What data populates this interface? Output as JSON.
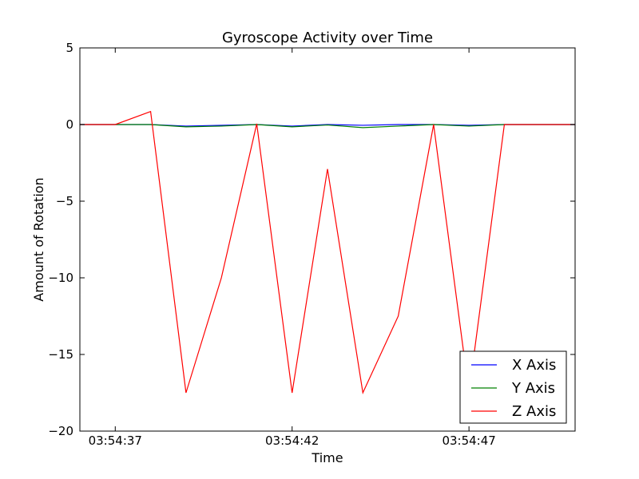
{
  "chart_data": {
    "type": "line",
    "title": "Gyroscope Activity over Time",
    "xlabel": "Time",
    "ylabel": "Amount of Rotation",
    "ylim": [
      -20,
      5
    ],
    "yticks": [
      5,
      0,
      -5,
      -10,
      -15,
      -20
    ],
    "xlim": [
      "03:54:36",
      "03:54:50"
    ],
    "xticks": [
      "03:54:37",
      "03:54:42",
      "03:54:47"
    ],
    "legend_position": "lower-right",
    "grid": false,
    "x": [
      "03:54:36",
      "03:54:37",
      "03:54:38",
      "03:54:39",
      "03:54:40",
      "03:54:41",
      "03:54:42",
      "03:54:43",
      "03:54:44",
      "03:54:45",
      "03:54:46",
      "03:54:47",
      "03:54:48",
      "03:54:49",
      "03:54:50"
    ],
    "series": [
      {
        "name": "X Axis",
        "color": "#0000ff",
        "values": [
          0,
          0,
          0,
          -0.1,
          -0.05,
          0,
          -0.1,
          0,
          -0.05,
          0,
          0,
          -0.05,
          0,
          0,
          0
        ]
      },
      {
        "name": "Y Axis",
        "color": "#008000",
        "values": [
          0,
          0,
          0,
          -0.15,
          -0.1,
          0,
          -0.15,
          -0.03,
          -0.2,
          -0.1,
          0,
          -0.1,
          0,
          0,
          0
        ]
      },
      {
        "name": "Z Axis",
        "color": "#ff0000",
        "values": [
          0,
          0,
          0.85,
          -17.5,
          -10,
          0.05,
          -17.5,
          -2.9,
          -17.5,
          -12.5,
          0,
          -17.5,
          0,
          0,
          0
        ]
      }
    ]
  }
}
